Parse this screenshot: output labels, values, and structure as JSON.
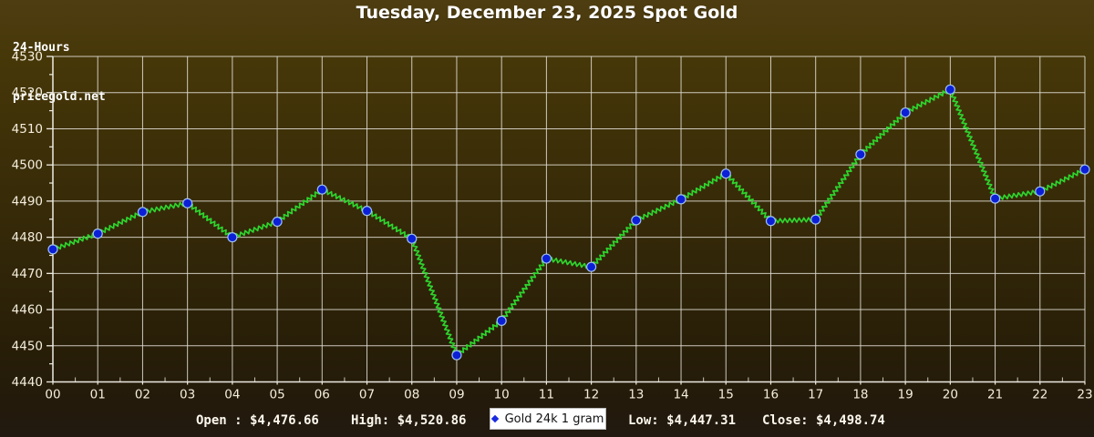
{
  "header": {
    "period": "24-Hours",
    "site": "pricegold.net",
    "title": "Tuesday, December 23, 2025 Spot Gold"
  },
  "legend": {
    "label": "Gold 24k 1 gram",
    "marker_color": "#1a2ae0"
  },
  "footer": {
    "open_text": "Open : $4,476.66",
    "high_text": "High: $4,520.86",
    "low_text": "Low: $4,447.31",
    "close_text": "Close: $4,498.74"
  },
  "chart_data": {
    "type": "line",
    "title": "Tuesday, December 23, 2025 Spot Gold",
    "series_name": "Gold 24k 1 gram",
    "x_labels": [
      "00",
      "01",
      "02",
      "03",
      "04",
      "05",
      "06",
      "07",
      "08",
      "09",
      "10",
      "11",
      "12",
      "13",
      "14",
      "15",
      "16",
      "17",
      "18",
      "19",
      "20",
      "21",
      "22",
      "23"
    ],
    "values": [
      4476.66,
      4481.0,
      4487.0,
      4489.4,
      4480.0,
      4484.3,
      4493.2,
      4487.3,
      4479.6,
      4447.4,
      4456.9,
      4474.1,
      4471.8,
      4484.7,
      4490.5,
      4497.6,
      4484.5,
      4484.9,
      4502.9,
      4514.5,
      4520.86,
      4490.7,
      4492.7,
      4498.74
    ],
    "stats": {
      "open": 4476.66,
      "high": 4520.86,
      "low": 4447.31,
      "close": 4498.74
    },
    "ylim": [
      4440,
      4530
    ],
    "y_ticks": [
      4440,
      4450,
      4460,
      4470,
      4480,
      4490,
      4500,
      4510,
      4520,
      4530
    ],
    "y_minor_step": 5,
    "x_minor_step": 0.5,
    "grid": true,
    "legend_position": "bottom-center",
    "line_color": "#2ed52e",
    "marker_color": "#0b1fd6",
    "marker_edge_color": "#9fc0ef",
    "grid_color": "#dedad0",
    "axis_color": "#eeebe2",
    "tick_label_color": "#f5eedd"
  }
}
